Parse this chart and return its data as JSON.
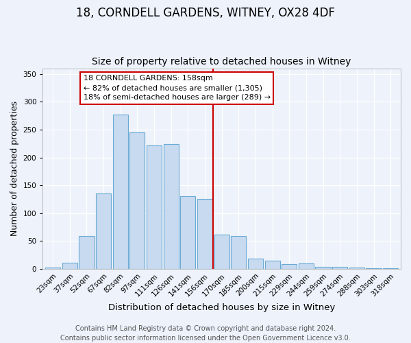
{
  "title": "18, CORNDELL GARDENS, WITNEY, OX28 4DF",
  "subtitle": "Size of property relative to detached houses in Witney",
  "xlabel": "Distribution of detached houses by size in Witney",
  "ylabel": "Number of detached properties",
  "categories": [
    "23sqm",
    "37sqm",
    "52sqm",
    "67sqm",
    "82sqm",
    "97sqm",
    "111sqm",
    "126sqm",
    "141sqm",
    "156sqm",
    "170sqm",
    "185sqm",
    "200sqm",
    "215sqm",
    "229sqm",
    "244sqm",
    "259sqm",
    "274sqm",
    "288sqm",
    "303sqm",
    "318sqm"
  ],
  "values": [
    2,
    11,
    59,
    135,
    277,
    245,
    221,
    224,
    130,
    125,
    61,
    59,
    18,
    15,
    8,
    10,
    4,
    4,
    2,
    1,
    1
  ],
  "bar_color": "#c8daf0",
  "bar_edge_color": "#6aaad4",
  "background_color": "#edf2fb",
  "grid_color": "#ffffff",
  "vline_color": "#cc0000",
  "annotation_title": "18 CORNDELL GARDENS: 158sqm",
  "annotation_line1": "← 82% of detached houses are smaller (1,305)",
  "annotation_line2": "18% of semi-detached houses are larger (289) →",
  "annotation_box_color": "#ffffff",
  "annotation_box_edge": "#cc0000",
  "ylim": [
    0,
    360
  ],
  "yticks": [
    0,
    50,
    100,
    150,
    200,
    250,
    300,
    350
  ],
  "footer1": "Contains HM Land Registry data © Crown copyright and database right 2024.",
  "footer2": "Contains public sector information licensed under the Open Government Licence v3.0.",
  "title_fontsize": 12,
  "subtitle_fontsize": 10,
  "xlabel_fontsize": 9.5,
  "ylabel_fontsize": 9,
  "tick_fontsize": 7.5,
  "footer_fontsize": 7,
  "ann_fontsize": 8
}
